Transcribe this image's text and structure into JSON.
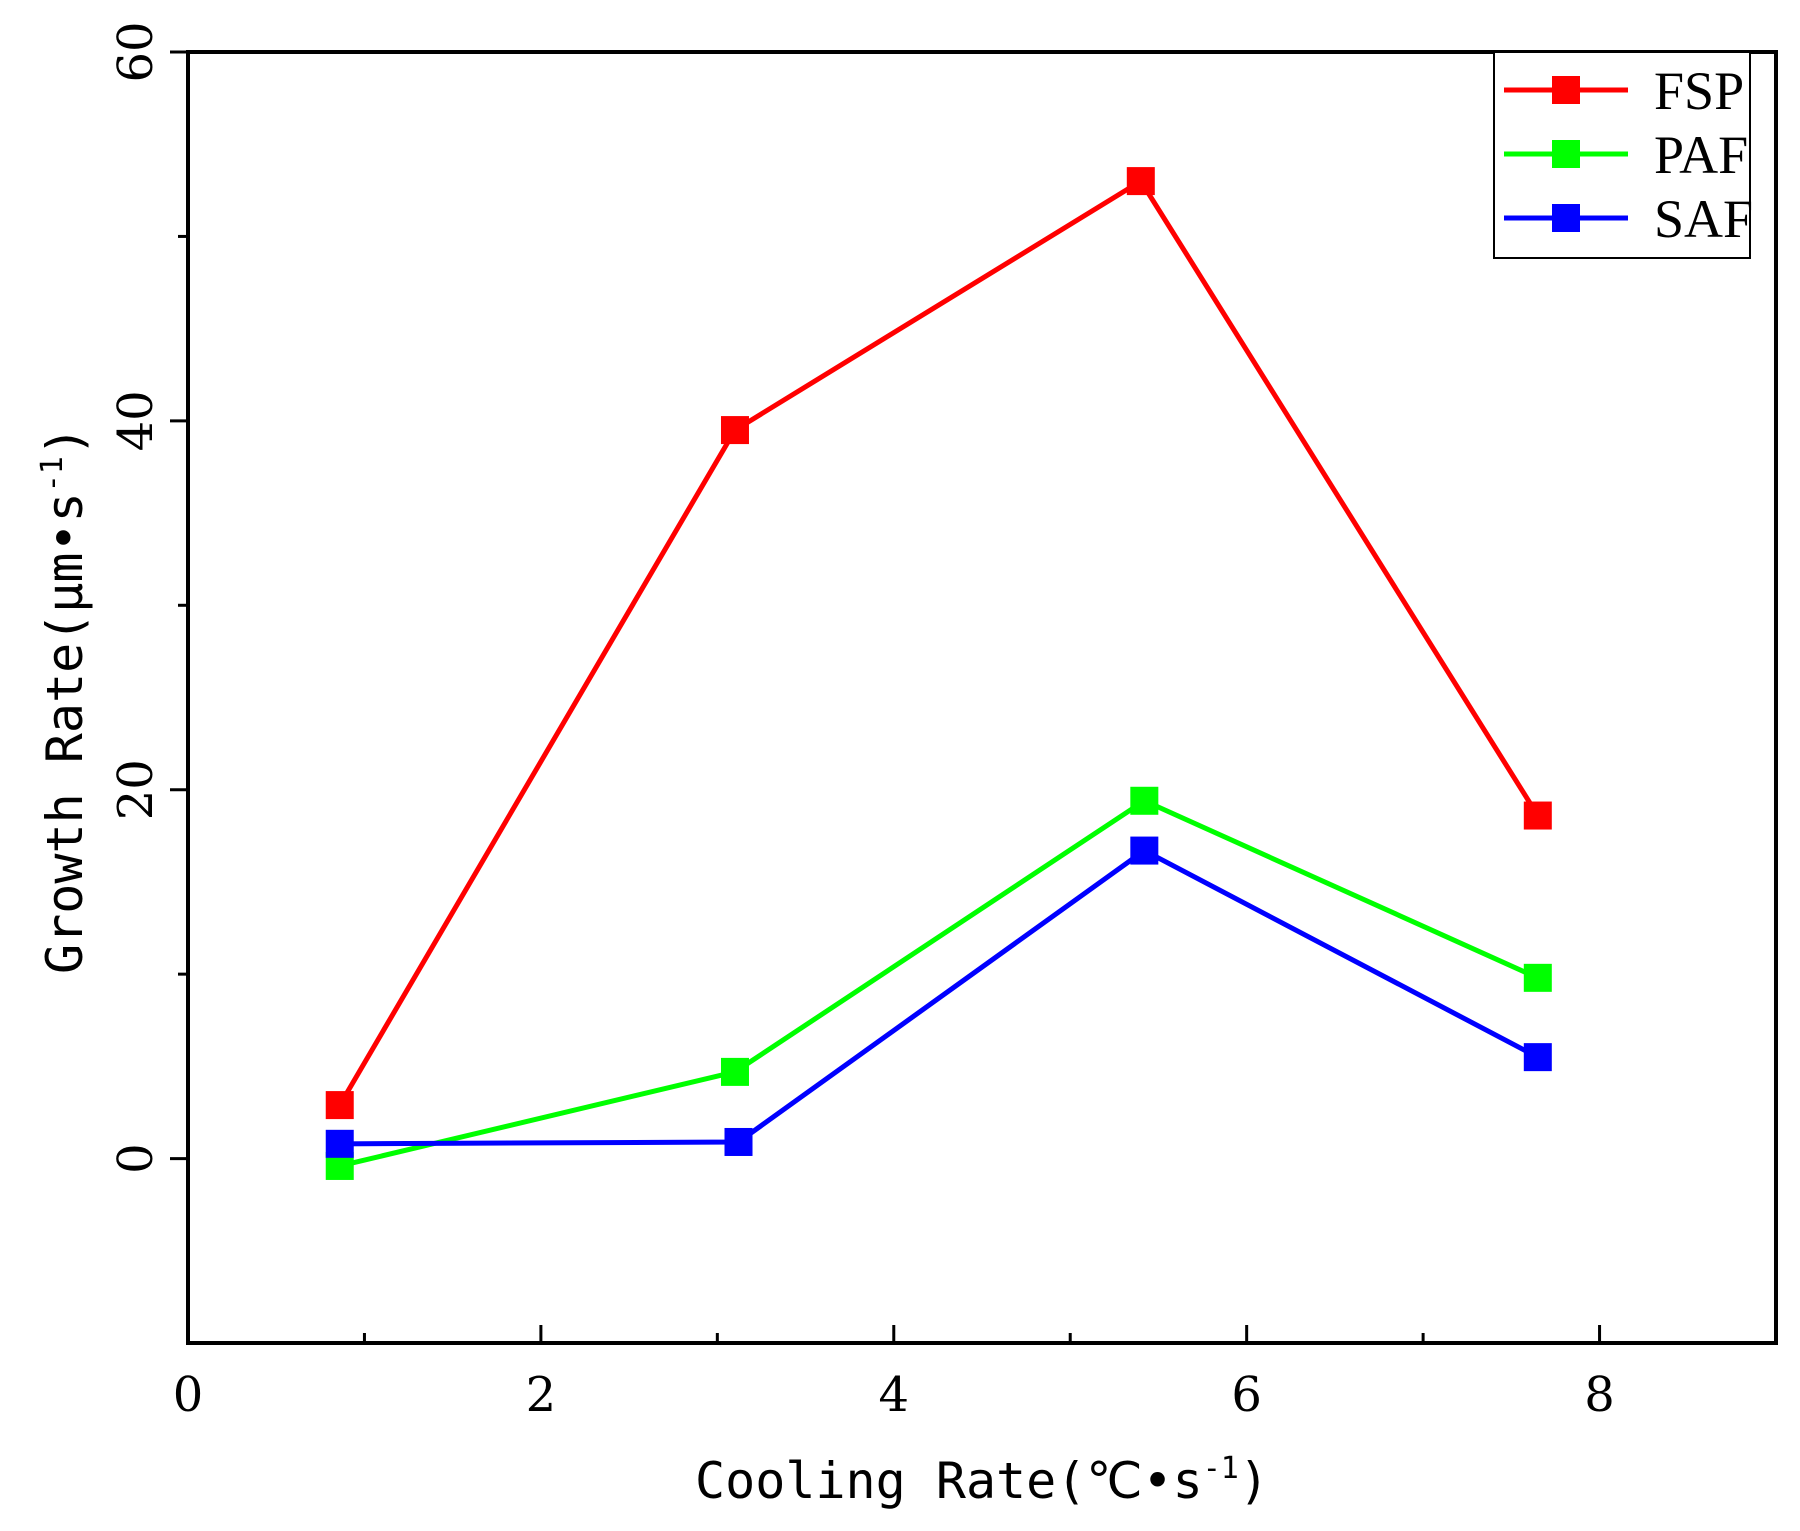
{
  "chart_data": {
    "type": "line",
    "xlabel": "Cooling Rate(℃•s",
    "xlabel_sup": "-1",
    "xlabel_close": ")",
    "ylabel": "Growth Rate(μm•s",
    "ylabel_sup": "-1",
    "ylabel_close": ")",
    "xlim": [
      0,
      9
    ],
    "ylim": [
      -10,
      60
    ],
    "x_ticks": [
      0,
      2,
      4,
      6,
      8
    ],
    "y_ticks": [
      0,
      20,
      40,
      60
    ],
    "x_tick_labels": [
      "0",
      "2",
      "4",
      "6",
      "8"
    ],
    "y_tick_labels": [
      "0",
      "20",
      "40",
      "60"
    ],
    "legend_position": "top-right",
    "series": [
      {
        "name": "FSP",
        "color": "#ff0000",
        "x": [
          0.86,
          3.1,
          5.4,
          7.65
        ],
        "y": [
          2.9,
          39.5,
          53.0,
          18.6
        ]
      },
      {
        "name": "PAF",
        "color": "#00ff00",
        "x": [
          0.86,
          3.1,
          5.42,
          7.65
        ],
        "y": [
          -0.4,
          4.7,
          19.4,
          9.8
        ]
      },
      {
        "name": "SAF",
        "color": "#0000ff",
        "x": [
          0.86,
          3.12,
          5.42,
          7.65
        ],
        "y": [
          0.8,
          0.9,
          16.7,
          5.5
        ]
      }
    ]
  }
}
